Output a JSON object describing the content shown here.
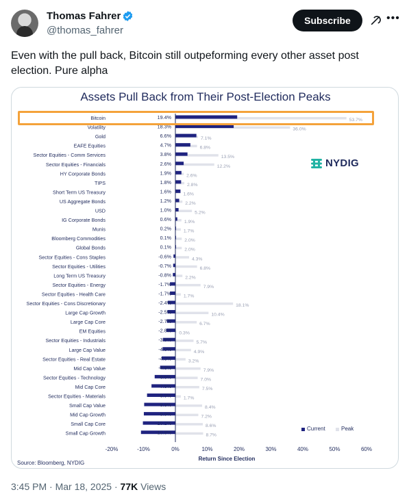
{
  "author": {
    "name": "Thomas Fahrer",
    "handle": "@thomas_fahrer"
  },
  "actions": {
    "subscribe": "Subscribe"
  },
  "tweet": {
    "text": "Even with the pull back, Bitcoin still outpeforming every other asset post election. Pure alpha"
  },
  "footer": {
    "time": "3:45 PM · Mar 18, 2025 · ",
    "views_count": "77K",
    "views_label": " Views"
  },
  "colors": {
    "current": "#1f2380",
    "peak": "#e0e2ea",
    "highlight": "#f4a23a",
    "verified": "#1d9bf0"
  },
  "icons": {
    "verified": "verified-badge-icon",
    "grok": "grok-icon",
    "more": "more-icon"
  },
  "chart_data": {
    "type": "bar",
    "title": "Assets Pull Back from Their Post-Election Peaks",
    "xlabel": "Return Since Election",
    "source": "Source: Bloomberg, NYDIG",
    "logo": "NYDIG",
    "xlim": [
      -20,
      60
    ],
    "xticks": [
      "-20%",
      "-10%",
      "0%",
      "10%",
      "20%",
      "30%",
      "40%",
      "50%",
      "60%"
    ],
    "tick_values": [
      -20,
      -10,
      0,
      10,
      20,
      30,
      40,
      50,
      60
    ],
    "legend": [
      "Current",
      "Peak"
    ],
    "legend_position": "bottom-right",
    "highlighted_category": "Bitcoin",
    "categories": [
      "Bitcoin",
      "Volatility",
      "Gold",
      "EAFE Equities",
      "Sector Equities - Comm Services",
      "Sector Equities - Financials",
      "HY Corporate Bonds",
      "TIPS",
      "Short Term US Treasury",
      "US Aggregate Bonds",
      "USD",
      "IG Corporate Bonds",
      "Munis",
      "Bloomberg Commodities",
      "Global Bonds",
      "Sector Equities - Cons Staples",
      "Sector Equities - Utilities",
      "Long Term US Treasury",
      "Sector Equities - Energy",
      "Sector Equities - Health Care",
      "Sector Equities - Cons Discretionary",
      "Large Cap Growth",
      "Large Cap Core",
      "EM Equities",
      "Sector Equities - Industrials",
      "Large Cap Value",
      "Sector Equities - Real Estate",
      "Mid Cap Value",
      "Sector Equities - Technology",
      "Mid Cap Core",
      "Sector Equities - Materials",
      "Small Cap Value",
      "Mid Cap Growth",
      "Small Cap Core",
      "Small Cap Growth"
    ],
    "series": [
      {
        "name": "Current",
        "values": [
          19.4,
          18.3,
          6.6,
          4.7,
          3.8,
          2.6,
          1.9,
          1.8,
          1.6,
          1.2,
          1.0,
          0.6,
          0.2,
          0.1,
          0.1,
          -0.6,
          -0.7,
          -0.8,
          -1.7,
          -1.7,
          -2.4,
          -2.5,
          -2.7,
          -2.8,
          -3.9,
          -4.0,
          -4.3,
          -4.8,
          -6.5,
          -7.5,
          -8.9,
          -9.8,
          -9.9,
          -10.2,
          -10.8
        ],
        "labels": [
          "19.4%",
          "18.3%",
          "6.6%",
          "4.7%",
          "3.8%",
          "2.6%",
          "1.9%",
          "1.8%",
          "1.6%",
          "1.2%",
          "1.0%",
          "0.6%",
          "0.2%",
          "0.1%",
          "0.1%",
          "-0.6%",
          "-0.7%",
          "-0.8%",
          "-1.7%",
          "-1.7%",
          "-2.4%",
          "-2.5%",
          "-2.7%",
          "-2.8%",
          "-3.9%",
          "-4.0%",
          "-4.3%",
          "-4.8%",
          "-6.5%",
          "-7.5%",
          "-8.9%",
          "-9.8%",
          "-9.9%",
          "-10.2%",
          "-10.8%"
        ]
      },
      {
        "name": "Peak",
        "values": [
          53.7,
          36.0,
          7.1,
          6.8,
          13.5,
          12.2,
          2.6,
          2.8,
          1.6,
          2.2,
          5.2,
          1.9,
          1.7,
          2.0,
          2.0,
          4.3,
          6.8,
          2.2,
          7.9,
          1.7,
          18.1,
          10.4,
          6.7,
          0.3,
          5.7,
          4.9,
          3.2,
          7.9,
          7.0,
          7.5,
          1.7,
          8.4,
          7.2,
          8.6,
          8.7
        ],
        "labels": [
          "53.7%",
          "36.0%",
          "7.1%",
          "6.8%",
          "13.5%",
          "12.2%",
          "2.6%",
          "2.8%",
          "1.6%",
          "2.2%",
          "5.2%",
          "1.9%",
          "1.7%",
          "2.0%",
          "2.0%",
          "4.3%",
          "6.8%",
          "2.2%",
          "7.9%",
          "1.7%",
          "18.1%",
          "10.4%",
          "6.7%",
          "0.3%",
          "5.7%",
          "4.9%",
          "3.2%",
          "7.9%",
          "7.0%",
          "7.5%",
          "1.7%",
          "8.4%",
          "7.2%",
          "8.6%",
          "8.7%"
        ]
      }
    ]
  }
}
